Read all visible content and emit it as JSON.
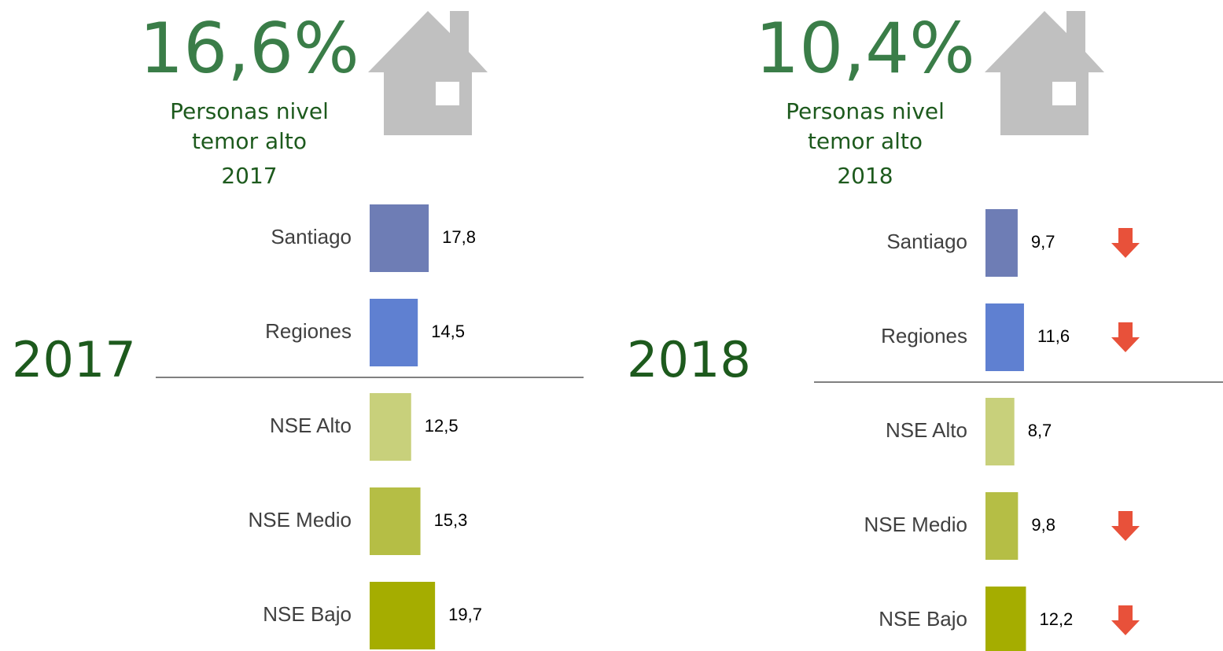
{
  "chart_data": [
    {
      "type": "bar",
      "headline": "16,6%",
      "subtitle": [
        "Personas nivel",
        "temor alto"
      ],
      "year_label": "2017",
      "side_label": "2017",
      "categories": [
        "Santiago",
        "Regiones",
        "NSE Alto",
        "NSE Medio",
        "NSE Bajo"
      ],
      "values": [
        17.8,
        14.5,
        12.5,
        15.3,
        19.7
      ],
      "value_labels": [
        "17,8",
        "14,5",
        "12,5",
        "15,3",
        "19,7"
      ],
      "colors": [
        "#6e7db5",
        "#5f80d1",
        "#c8d07b",
        "#b5be45",
        "#a5ad00"
      ],
      "down_arrows": [
        false,
        false,
        false,
        false,
        false
      ]
    },
    {
      "type": "bar",
      "headline": "10,4%",
      "subtitle": [
        "Personas nivel",
        "temor alto"
      ],
      "year_label": "2018",
      "side_label": "2018",
      "categories": [
        "Santiago",
        "Regiones",
        "NSE Alto",
        "NSE Medio",
        "NSE Bajo"
      ],
      "values": [
        9.7,
        11.6,
        8.7,
        9.8,
        12.2
      ],
      "value_labels": [
        "9,7",
        "11,6",
        "8,7",
        "9,8",
        "12,2"
      ],
      "colors": [
        "#6e7db5",
        "#5f80d1",
        "#c8d07b",
        "#b5be45",
        "#a5ad00"
      ],
      "down_arrows": [
        true,
        true,
        false,
        true,
        true
      ]
    }
  ]
}
